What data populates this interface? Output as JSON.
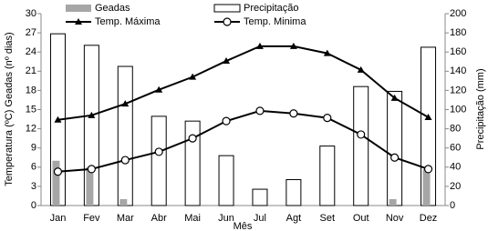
{
  "chart_data": {
    "type": "combo",
    "xlabel": "Mês",
    "ylabel": "Temperatura (ºC) Geadas (nº dias)",
    "y2label": "Precipitação (mm)",
    "categories": [
      "Jan",
      "Fev",
      "Mar",
      "Abr",
      "Mai",
      "Jun",
      "Jul",
      "Agt",
      "Set",
      "Out",
      "Nov",
      "Dez"
    ],
    "ylim": [
      0,
      30
    ],
    "yticks": [
      0,
      3,
      6,
      9,
      12,
      15,
      18,
      21,
      24,
      27,
      30
    ],
    "y2lim": [
      0,
      200
    ],
    "y2ticks": [
      0,
      20,
      40,
      60,
      80,
      100,
      120,
      140,
      160,
      180,
      200
    ],
    "grid": false,
    "series": [
      {
        "name": "Geadas",
        "type": "bar",
        "color": "#a6a6a6",
        "values": [
          7,
          6,
          1,
          0,
          0,
          0,
          0,
          0,
          0,
          0,
          1,
          5.7
        ]
      },
      {
        "name": "Precipitação",
        "type": "bar",
        "axis": "y2",
        "color": "#ffffff",
        "values": [
          179,
          167,
          145,
          93,
          88,
          52,
          17,
          27,
          62,
          124,
          119,
          165
        ]
      },
      {
        "name": "Temp. Máxima",
        "type": "line",
        "marker": "triangle",
        "color": "#000000",
        "values": [
          13.4,
          14.1,
          15.9,
          18.1,
          20.1,
          22.6,
          24.9,
          24.9,
          23.8,
          21.2,
          16.8,
          13.8
        ]
      },
      {
        "name": "Temp. Minima",
        "type": "line",
        "marker": "circle",
        "color": "#000000",
        "values": [
          5.3,
          5.7,
          7.1,
          8.4,
          10.5,
          13.2,
          14.8,
          14.4,
          13.7,
          11.1,
          7.5,
          5.7
        ]
      }
    ]
  }
}
